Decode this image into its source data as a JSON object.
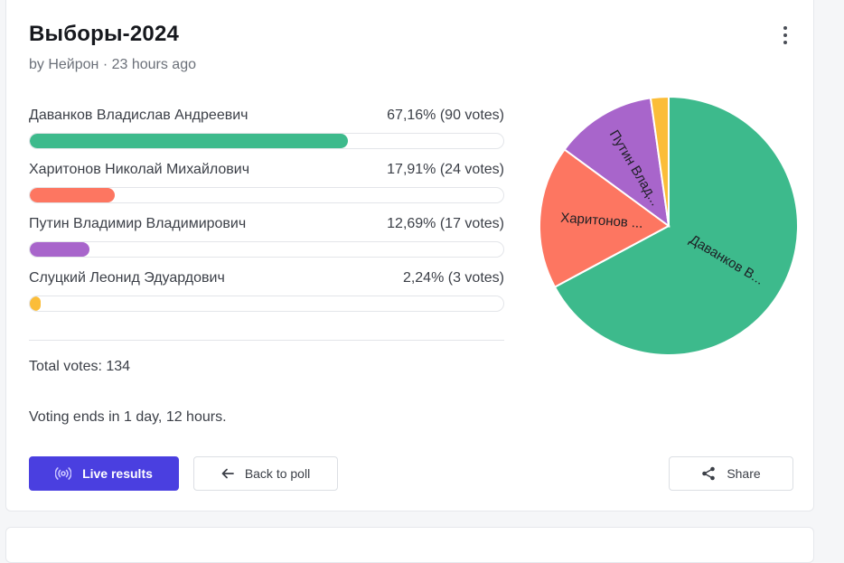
{
  "poll": {
    "title": "Выборы-2024",
    "meta": "by Нейрон · 23 hours ago",
    "total": "Total votes: 134",
    "ends": "Voting ends in 1 day, 12 hours."
  },
  "options": [
    {
      "label": "Даванков Владислав Андреевич",
      "result": "67,16% (90 votes)",
      "pct": 67.16,
      "votes": 90,
      "color": "#3dba8c",
      "pie_label": "Даванков В..."
    },
    {
      "label": "Харитонов Николай Михайлович",
      "result": "17,91% (24 votes)",
      "pct": 17.91,
      "votes": 24,
      "color": "#fd7661",
      "pie_label": "Харитонов ..."
    },
    {
      "label": "Путин Владимир Владимирович",
      "result": "12,69% (17 votes)",
      "pct": 12.69,
      "votes": 17,
      "color": "#a865cb",
      "pie_label": "Путин Влад..."
    },
    {
      "label": "Слуцкий Леонид Эдуардович",
      "result": "2,24% (3 votes)",
      "pct": 2.24,
      "votes": 3,
      "color": "#fbbd39",
      "pie_label": ""
    }
  ],
  "buttons": {
    "live": "Live results",
    "back": "Back to poll",
    "share": "Share"
  },
  "icons": {
    "menu": "kebab-menu-icon",
    "live": "broadcast-icon",
    "back": "arrow-left-icon",
    "share": "share-icon"
  },
  "colors": {
    "primary": "#4a3fe0"
  },
  "chart_data": {
    "type": "pie",
    "categories": [
      "Даванков В...",
      "Харитонов ...",
      "Путин Влад...",
      ""
    ],
    "values": [
      90,
      24,
      17,
      3
    ],
    "title": ""
  }
}
